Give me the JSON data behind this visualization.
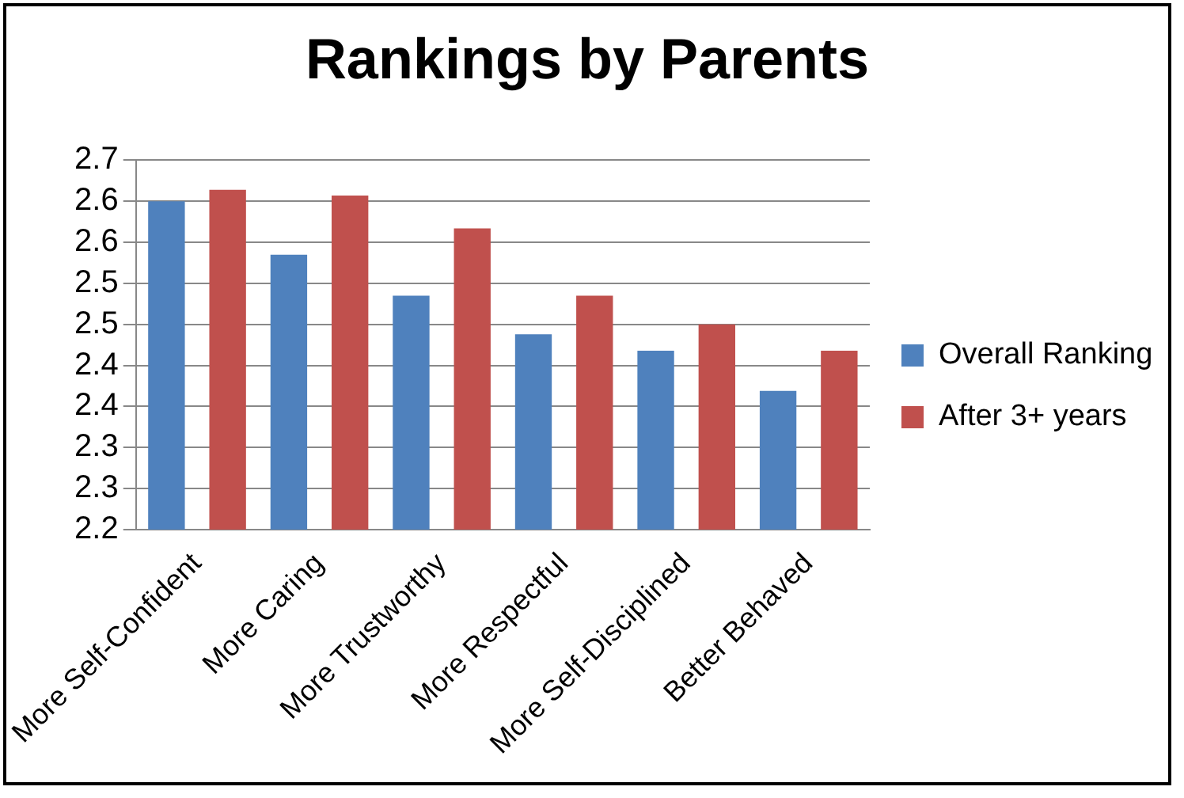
{
  "chart_data": {
    "type": "bar",
    "title": "Rankings by Parents",
    "categories": [
      "More Self-Confident",
      "More Caring",
      "More Trustworthy",
      "More Respectful",
      "More Self-Disciplined",
      "Better Behaved"
    ],
    "series": [
      {
        "name": "Overall Ranking",
        "color": "#4f81bd",
        "values": [
          2.65,
          2.585,
          2.535,
          2.488,
          2.468,
          2.419
        ]
      },
      {
        "name": "After 3+ years",
        "color": "#c0504d",
        "values": [
          2.664,
          2.657,
          2.617,
          2.535,
          2.5,
          2.468
        ]
      }
    ],
    "ylim": [
      2.25,
      2.7
    ],
    "yticks": [
      {
        "value": 2.25,
        "label": "2.2"
      },
      {
        "value": 2.3,
        "label": "2.3"
      },
      {
        "value": 2.35,
        "label": "2.3"
      },
      {
        "value": 2.4,
        "label": "2.4"
      },
      {
        "value": 2.45,
        "label": "2.4"
      },
      {
        "value": 2.5,
        "label": "2.5"
      },
      {
        "value": 2.55,
        "label": "2.5"
      },
      {
        "value": 2.6,
        "label": "2.6"
      },
      {
        "value": 2.65,
        "label": "2.6"
      },
      {
        "value": 2.7,
        "label": "2.7"
      }
    ],
    "grid": "y",
    "legend": "right"
  }
}
